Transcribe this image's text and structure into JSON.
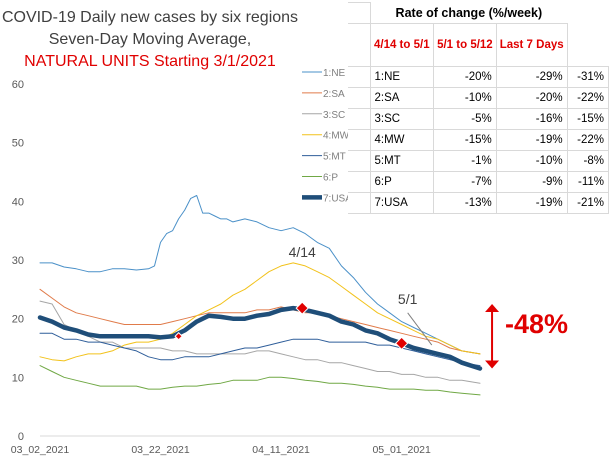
{
  "title": {
    "line1": "COVID-19 Daily new cases by six regions",
    "line2": "Seven-Day Moving Average,",
    "line3": "NATURAL UNITS Starting 3/1/2021"
  },
  "table": {
    "title": "Rate of change (%/week)",
    "headers": [
      "4/14 to 5/1",
      "5/1  to 5/12",
      "Last 7 Days"
    ],
    "rows": [
      {
        "label": "1:NE",
        "values": [
          "-20%",
          "-29%",
          "-31%"
        ]
      },
      {
        "label": "2:SA",
        "values": [
          "-10%",
          "-20%",
          "-22%"
        ]
      },
      {
        "label": "3:SC",
        "values": [
          "-5%",
          "-16%",
          "-15%"
        ]
      },
      {
        "label": "4:MW",
        "values": [
          "-15%",
          "-19%",
          "-22%"
        ]
      },
      {
        "label": "5:MT",
        "values": [
          "-1%",
          "-10%",
          "-8%"
        ]
      },
      {
        "label": "6:P",
        "values": [
          "-7%",
          "-9%",
          "-11%"
        ]
      },
      {
        "label": "7:USA",
        "values": [
          "-13%",
          "-19%",
          "-21%"
        ]
      }
    ]
  },
  "chart_data": {
    "type": "line",
    "ylim": [
      0,
      60
    ],
    "y_ticks": [
      "0",
      "10",
      "20",
      "30",
      "40",
      "50",
      "60"
    ],
    "x_ticks": [
      "03_02_2021",
      "03_22_2021",
      "04_11_2021",
      "05_01_2021"
    ],
    "x_tick_days": [
      0,
      20,
      40,
      60
    ],
    "x_range_days": [
      0,
      73
    ],
    "grid": false,
    "legend_placement": "right, beside table",
    "series": [
      {
        "name": "1:NE",
        "color": "#4a90c8",
        "width": 1,
        "points": [
          [
            0,
            29.5
          ],
          [
            2,
            29.5
          ],
          [
            4,
            28.8
          ],
          [
            6,
            28.5
          ],
          [
            8,
            28
          ],
          [
            10,
            28
          ],
          [
            12,
            28.5
          ],
          [
            14,
            28.5
          ],
          [
            16,
            28.3
          ],
          [
            18,
            28.5
          ],
          [
            19,
            29
          ],
          [
            20,
            33
          ],
          [
            21,
            34.5
          ],
          [
            22,
            35
          ],
          [
            23,
            37
          ],
          [
            24,
            38.5
          ],
          [
            25,
            40.5
          ],
          [
            26,
            41
          ],
          [
            27,
            38
          ],
          [
            28,
            38
          ],
          [
            29,
            37.5
          ],
          [
            30,
            37
          ],
          [
            31,
            37
          ],
          [
            32,
            36.5
          ],
          [
            34,
            37
          ],
          [
            36,
            36.5
          ],
          [
            38,
            35.5
          ],
          [
            40,
            35
          ],
          [
            42,
            35.5
          ],
          [
            44,
            34.5
          ],
          [
            46,
            33
          ],
          [
            48,
            32
          ],
          [
            50,
            29
          ],
          [
            52,
            27
          ],
          [
            54,
            24.5
          ],
          [
            56,
            22.5
          ],
          [
            58,
            21
          ],
          [
            60,
            19.5
          ],
          [
            62,
            18.5
          ],
          [
            64,
            17.5
          ],
          [
            66,
            16.5
          ],
          [
            68,
            15.5
          ],
          [
            70,
            14.5
          ],
          [
            73,
            14
          ]
        ]
      },
      {
        "name": "2:SA",
        "color": "#e07b4a",
        "width": 1,
        "points": [
          [
            0,
            25
          ],
          [
            2,
            23.5
          ],
          [
            4,
            22
          ],
          [
            6,
            21
          ],
          [
            8,
            20.5
          ],
          [
            10,
            20
          ],
          [
            12,
            19.5
          ],
          [
            14,
            19
          ],
          [
            16,
            19
          ],
          [
            18,
            19
          ],
          [
            20,
            19
          ],
          [
            22,
            19.5
          ],
          [
            24,
            20
          ],
          [
            26,
            20.5
          ],
          [
            28,
            21
          ],
          [
            30,
            21
          ],
          [
            32,
            21
          ],
          [
            34,
            21
          ],
          [
            36,
            21.5
          ],
          [
            38,
            21.5
          ],
          [
            40,
            22
          ],
          [
            42,
            21.5
          ],
          [
            44,
            21
          ],
          [
            46,
            21
          ],
          [
            48,
            20.5
          ],
          [
            50,
            20
          ],
          [
            52,
            19.5
          ],
          [
            54,
            19
          ],
          [
            56,
            18.5
          ],
          [
            58,
            18
          ],
          [
            60,
            17.5
          ],
          [
            62,
            17
          ],
          [
            64,
            16.5
          ],
          [
            66,
            16
          ],
          [
            68,
            15
          ],
          [
            70,
            14.5
          ],
          [
            73,
            14
          ]
        ]
      },
      {
        "name": "3:SC",
        "color": "#a6a6a6",
        "width": 1,
        "points": [
          [
            0,
            23
          ],
          [
            2,
            22.5
          ],
          [
            4,
            19
          ],
          [
            6,
            18
          ],
          [
            8,
            17
          ],
          [
            10,
            16
          ],
          [
            12,
            16
          ],
          [
            14,
            15
          ],
          [
            16,
            15
          ],
          [
            18,
            15
          ],
          [
            20,
            15
          ],
          [
            22,
            14.5
          ],
          [
            24,
            14.5
          ],
          [
            26,
            14
          ],
          [
            28,
            14
          ],
          [
            30,
            14
          ],
          [
            32,
            14
          ],
          [
            34,
            14
          ],
          [
            36,
            14.5
          ],
          [
            38,
            14.5
          ],
          [
            40,
            14
          ],
          [
            42,
            13.5
          ],
          [
            44,
            13
          ],
          [
            46,
            13
          ],
          [
            48,
            12.5
          ],
          [
            50,
            12.5
          ],
          [
            52,
            12
          ],
          [
            54,
            11.5
          ],
          [
            56,
            11
          ],
          [
            58,
            11
          ],
          [
            60,
            10.5
          ],
          [
            62,
            10.5
          ],
          [
            64,
            10
          ],
          [
            66,
            10
          ],
          [
            68,
            9.5
          ],
          [
            70,
            9.5
          ],
          [
            73,
            9
          ]
        ]
      },
      {
        "name": "4:MW",
        "color": "#f2c21b",
        "width": 1,
        "points": [
          [
            0,
            13.5
          ],
          [
            2,
            13
          ],
          [
            4,
            12.8
          ],
          [
            6,
            13.5
          ],
          [
            8,
            14
          ],
          [
            10,
            14
          ],
          [
            12,
            14.5
          ],
          [
            14,
            15.5
          ],
          [
            16,
            16
          ],
          [
            18,
            16
          ],
          [
            20,
            16.5
          ],
          [
            22,
            17.5
          ],
          [
            24,
            19
          ],
          [
            26,
            20.5
          ],
          [
            28,
            21.5
          ],
          [
            30,
            22.5
          ],
          [
            32,
            24
          ],
          [
            34,
            25
          ],
          [
            36,
            26.5
          ],
          [
            38,
            28
          ],
          [
            40,
            29
          ],
          [
            42,
            29.5
          ],
          [
            44,
            29
          ],
          [
            46,
            28
          ],
          [
            48,
            27
          ],
          [
            50,
            25.5
          ],
          [
            52,
            24
          ],
          [
            54,
            22.5
          ],
          [
            56,
            21
          ],
          [
            58,
            20
          ],
          [
            60,
            19
          ],
          [
            62,
            18
          ],
          [
            64,
            17
          ],
          [
            66,
            16.5
          ],
          [
            68,
            15.5
          ],
          [
            70,
            14.5
          ],
          [
            73,
            14
          ]
        ]
      },
      {
        "name": "5:MT",
        "color": "#2f5e9a",
        "width": 1,
        "points": [
          [
            0,
            17.5
          ],
          [
            2,
            17.5
          ],
          [
            4,
            16.5
          ],
          [
            6,
            16.5
          ],
          [
            8,
            16
          ],
          [
            10,
            16
          ],
          [
            12,
            15.5
          ],
          [
            14,
            15
          ],
          [
            16,
            14.5
          ],
          [
            18,
            13.5
          ],
          [
            20,
            13
          ],
          [
            22,
            13
          ],
          [
            24,
            13.5
          ],
          [
            26,
            13.5
          ],
          [
            28,
            13.5
          ],
          [
            30,
            14
          ],
          [
            32,
            14.5
          ],
          [
            34,
            15
          ],
          [
            36,
            15
          ],
          [
            38,
            15.5
          ],
          [
            40,
            16
          ],
          [
            42,
            16.5
          ],
          [
            44,
            16.5
          ],
          [
            46,
            16.5
          ],
          [
            48,
            16
          ],
          [
            50,
            16
          ],
          [
            52,
            16
          ],
          [
            54,
            16
          ],
          [
            56,
            15.5
          ],
          [
            58,
            15.5
          ],
          [
            60,
            15
          ],
          [
            62,
            14.5
          ],
          [
            64,
            14
          ],
          [
            66,
            13.5
          ],
          [
            68,
            13
          ],
          [
            70,
            12.5
          ],
          [
            73,
            12
          ]
        ]
      },
      {
        "name": "6:P",
        "color": "#70a845",
        "width": 1,
        "points": [
          [
            0,
            12
          ],
          [
            2,
            11
          ],
          [
            4,
            10
          ],
          [
            6,
            9.5
          ],
          [
            8,
            9
          ],
          [
            10,
            8.5
          ],
          [
            12,
            8.5
          ],
          [
            14,
            8.5
          ],
          [
            16,
            8.5
          ],
          [
            18,
            8
          ],
          [
            20,
            8
          ],
          [
            22,
            8.3
          ],
          [
            24,
            8.5
          ],
          [
            26,
            8.5
          ],
          [
            28,
            8.8
          ],
          [
            30,
            9
          ],
          [
            32,
            9.5
          ],
          [
            34,
            9.5
          ],
          [
            36,
            9.5
          ],
          [
            38,
            10
          ],
          [
            40,
            10
          ],
          [
            42,
            9.8
          ],
          [
            44,
            9.5
          ],
          [
            46,
            9.3
          ],
          [
            48,
            9
          ],
          [
            50,
            9
          ],
          [
            52,
            8.8
          ],
          [
            54,
            8.5
          ],
          [
            56,
            8.3
          ],
          [
            58,
            8
          ],
          [
            60,
            8
          ],
          [
            62,
            8
          ],
          [
            64,
            7.8
          ],
          [
            66,
            7.8
          ],
          [
            68,
            7.5
          ],
          [
            70,
            7.3
          ],
          [
            73,
            7
          ]
        ]
      },
      {
        "name": "7:USA",
        "color": "#1f4e79",
        "width": 4.5,
        "points": [
          [
            0,
            20.2
          ],
          [
            2,
            19.5
          ],
          [
            4,
            18.5
          ],
          [
            6,
            18
          ],
          [
            8,
            17.3
          ],
          [
            10,
            17
          ],
          [
            12,
            17
          ],
          [
            14,
            17
          ],
          [
            16,
            17
          ],
          [
            18,
            17
          ],
          [
            20,
            16.8
          ],
          [
            22,
            17
          ],
          [
            24,
            18
          ],
          [
            26,
            19.5
          ],
          [
            28,
            20.5
          ],
          [
            30,
            20.3
          ],
          [
            32,
            20
          ],
          [
            34,
            20
          ],
          [
            36,
            20.5
          ],
          [
            38,
            20.8
          ],
          [
            40,
            21.5
          ],
          [
            42,
            21.8
          ],
          [
            44,
            21.5
          ],
          [
            46,
            21
          ],
          [
            48,
            20.5
          ],
          [
            50,
            19.5
          ],
          [
            52,
            19
          ],
          [
            54,
            18
          ],
          [
            56,
            17.5
          ],
          [
            58,
            16.5
          ],
          [
            60,
            15.8
          ],
          [
            62,
            15
          ],
          [
            64,
            14.5
          ],
          [
            66,
            14
          ],
          [
            68,
            13.5
          ],
          [
            70,
            12.5
          ],
          [
            73,
            11.5
          ]
        ]
      }
    ],
    "markers": [
      {
        "series": "7:USA",
        "x_day": 23,
        "y": 17,
        "color": "#e00000",
        "size": "small"
      },
      {
        "series": "7:USA",
        "x_day": 43.5,
        "y": 21.8,
        "color": "#e00000",
        "size": "large"
      },
      {
        "series": "7:USA",
        "x_day": 60,
        "y": 15.8,
        "color": "#e00000",
        "size": "large"
      }
    ],
    "annotations": [
      {
        "text": "4/14",
        "x_day": 43.5,
        "y": 30.5,
        "color": "#404040"
      },
      {
        "text": "5/1",
        "x_day": 61,
        "y": 22.5,
        "color": "#404040"
      }
    ],
    "leaders": [
      {
        "from_day": 61,
        "from_y": 21,
        "to_day": 65,
        "to_y": 15.5
      }
    ],
    "big_annotation": {
      "text": "-48%",
      "color": "#e00000"
    },
    "change_arrow": {
      "x_day": 75,
      "y_top": 22.5,
      "y_bottom": 11.5,
      "color": "#e00000"
    }
  }
}
